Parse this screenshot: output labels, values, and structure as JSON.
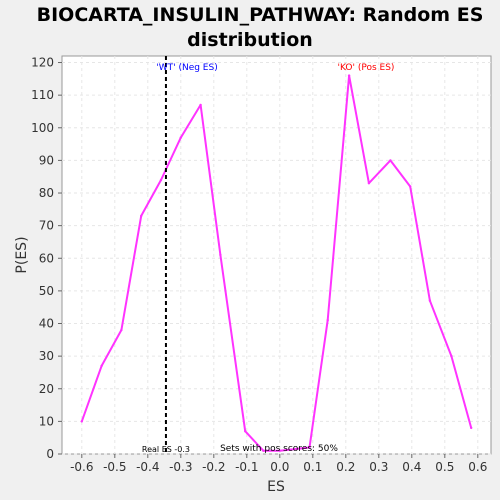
{
  "chart_data": {
    "type": "line",
    "title_line1": "BIOCARTA_INSULIN_PATHWAY: Random ES",
    "title_line2": "distribution",
    "xlabel": "ES",
    "ylabel": "P(ES)",
    "xlim": [
      -0.66,
      0.64
    ],
    "ylim": [
      0,
      122
    ],
    "x_ticks": [
      -0.6,
      -0.5,
      -0.4,
      -0.3,
      -0.2,
      -0.1,
      0.0,
      0.1,
      0.2,
      0.3,
      0.4,
      0.5,
      0.6
    ],
    "x_tick_labels": [
      "-0.6",
      "-0.5",
      "-0.4",
      "-0.3",
      "-0.2",
      "-0.1",
      "0.0",
      "0.1",
      "0.2",
      "0.3",
      "0.4",
      "0.5",
      "0.6"
    ],
    "y_ticks": [
      0,
      10,
      20,
      30,
      40,
      50,
      60,
      70,
      80,
      90,
      100,
      110,
      120
    ],
    "y_tick_labels": [
      "0",
      "10",
      "20",
      "30",
      "40",
      "50",
      "60",
      "70",
      "80",
      "90",
      "100",
      "110",
      "120"
    ],
    "grid": true,
    "series_color": "#ff33ff",
    "series": [
      {
        "x": [
          -0.6,
          -0.54,
          -0.48,
          -0.42,
          -0.36,
          -0.3,
          -0.24,
          -0.18,
          -0.105,
          -0.05,
          0.0,
          0.09,
          0.145,
          0.21,
          0.27,
          0.335,
          0.395,
          0.455,
          0.52,
          0.58
        ],
        "y": [
          10,
          27,
          38,
          73,
          84,
          97,
          107,
          61,
          7,
          1,
          1,
          2,
          41,
          116,
          83,
          90,
          82,
          47,
          30,
          8
        ]
      }
    ],
    "real_es_line": {
      "x": -0.345,
      "label": "Real ES -0.3",
      "color": "#000000"
    },
    "annotations": {
      "neg_label": "'WT' (Neg ES)",
      "neg_color": "#0000ff",
      "pos_label": "'KO' (Pos ES)",
      "pos_color": "#ff0000",
      "pos_scores": "Sets with pos scores: 50%"
    }
  }
}
